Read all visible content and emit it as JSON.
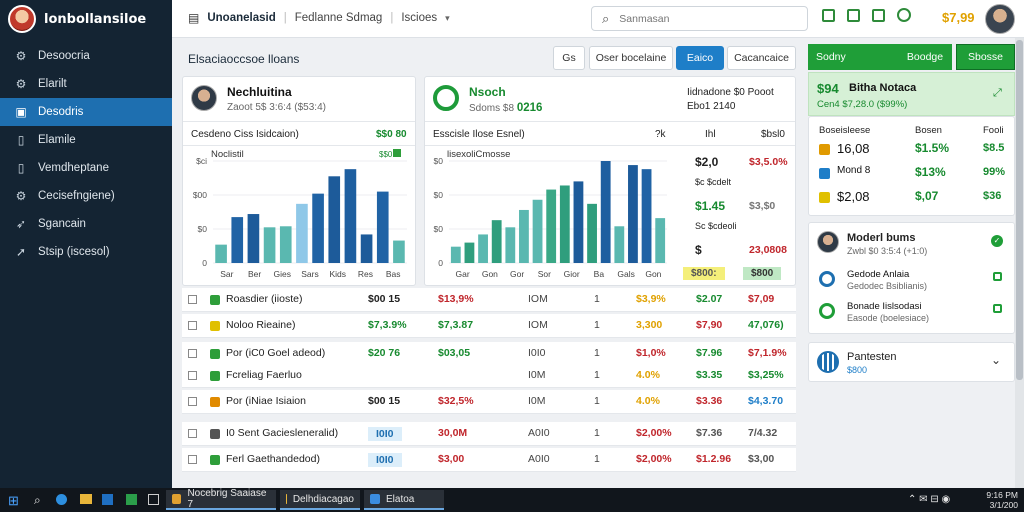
{
  "app": {
    "title": "lonbollansiloe"
  },
  "sidebar": {
    "items": [
      {
        "label": "Desoocria",
        "icon": "gear-icon"
      },
      {
        "label": "Elarilt",
        "icon": "gear-icon"
      },
      {
        "label": "Desodris",
        "icon": "inbox-icon",
        "active": true
      },
      {
        "label": "Elamile",
        "icon": "document-icon"
      },
      {
        "label": "Vemdheptane",
        "icon": "document-icon"
      },
      {
        "label": "Cecisefngiene)",
        "icon": "gear-icon"
      },
      {
        "label": "Sgancain",
        "icon": "rocket-icon"
      },
      {
        "label": "Stsip (iscesol)",
        "icon": "tag-icon"
      }
    ]
  },
  "topbar": {
    "title": "Unoanelasid",
    "crumb1": "Fedlanne Sdmag",
    "crumb2": "Iscioes",
    "search_placeholder": "Sanmasan",
    "price": "$7,99"
  },
  "main": {
    "title": "Elsaciaoccsoe lloans",
    "buttons": [
      "Gs",
      "Oser bocelaine",
      "Eaico",
      "Cacancaice"
    ]
  },
  "card1": {
    "name": "Nechluitina",
    "sub": "Zaoot 5$ 3:6:4 ($53:4)",
    "caption": "Cesdeno Ciss Isidcaion)",
    "value": "$$0 80",
    "chart_title": "Noclistil",
    "chart_tag": "$$0",
    "yticks": [
      "$ci",
      "$00",
      "$0",
      "0"
    ],
    "xticks": [
      "Sar",
      "Ber",
      "Gies",
      "Sars",
      "Kids",
      "Res",
      "Bas"
    ],
    "bars": [
      {
        "v": 18,
        "c": "#5ab8b0"
      },
      {
        "v": 45,
        "c": "#2063a5"
      },
      {
        "v": 48,
        "c": "#1d5b9a"
      },
      {
        "v": 35,
        "c": "#5ab8b0"
      },
      {
        "v": 36,
        "c": "#5ab8b0"
      },
      {
        "v": 58,
        "c": "#8fc8e8"
      },
      {
        "v": 68,
        "c": "#2063a5"
      },
      {
        "v": 85,
        "c": "#1d5b9a"
      },
      {
        "v": 92,
        "c": "#1e5fa0"
      },
      {
        "v": 28,
        "c": "#1d5b9a"
      },
      {
        "v": 70,
        "c": "#2063a5"
      },
      {
        "v": 22,
        "c": "#5ab8b0"
      }
    ]
  },
  "card2": {
    "name": "Nsoch",
    "sub_label": "Sdoms $8",
    "sub_value": "0216",
    "right1": "Iidnadone $0 Pooot",
    "right2": "Ebo1 2140",
    "caption": "Esscisle Ilose Esnel)",
    "col_a": "?k",
    "col_b": "Ihl",
    "col_c": "$bsl0",
    "chart_title": "lisexoliCmosse",
    "yticks": [
      "$0",
      "$0",
      "$0",
      "0"
    ],
    "xticks": [
      "Gar",
      "Gon",
      "Gor",
      "Sor",
      "Gior",
      "Ba",
      "Gals",
      "Gon"
    ],
    "bars": [
      {
        "v": 16,
        "c": "#5ab8b0"
      },
      {
        "v": 20,
        "c": "#2f9e7d"
      },
      {
        "v": 28,
        "c": "#5ab8b0"
      },
      {
        "v": 42,
        "c": "#2f9e7d"
      },
      {
        "v": 35,
        "c": "#5ab8b0"
      },
      {
        "v": 52,
        "c": "#5ab8b0"
      },
      {
        "v": 62,
        "c": "#5ab8b0"
      },
      {
        "v": 72,
        "c": "#3aa886"
      },
      {
        "v": 76,
        "c": "#2f9e7d"
      },
      {
        "v": 80,
        "c": "#1d5b9a"
      },
      {
        "v": 58,
        "c": "#2f9e7d"
      },
      {
        "v": 100,
        "c": "#1e5fa0"
      },
      {
        "v": 36,
        "c": "#5ab8b0"
      },
      {
        "v": 96,
        "c": "#1d5b9a"
      },
      {
        "v": 92,
        "c": "#2063a5"
      },
      {
        "v": 44,
        "c": "#5ab8b0"
      }
    ],
    "side": [
      {
        "a": "$2,0",
        "b": "$3,5.0%",
        "bc": "#c0262c"
      },
      {
        "a": "$c $cdelt",
        "b": "",
        "bc": "#333"
      },
      {
        "a": "$1.45",
        "b": "$3,$0",
        "bc": "#777",
        "ac": "#178a2f"
      },
      {
        "a": "Sc $cdeoli",
        "b": "",
        "bc": "#333"
      },
      {
        "a": "$",
        "b": "23,0808",
        "bc": "#c0262c"
      }
    ],
    "badge1": "$800:",
    "badge2": "$800"
  },
  "table": {
    "rows": [
      {
        "icon_color": "#2e9e3a",
        "label": "Roasdier (iioste)",
        "v1": "$00 15",
        "v2": "$13,9%",
        "v2c": "#c0262c",
        "v3": "IOM",
        "v4": "1",
        "v5": "$3,9%",
        "v5c": "#e0a100",
        "v6": "$2.07",
        "v6c": "#178a2f",
        "v7": "$7,09",
        "v7c": "#c0262c"
      },
      {
        "icon_color": "#e0c000",
        "label": "Noloo Rieaine)",
        "v1": "$7,3.9%",
        "v1c": "#178a2f",
        "v2": "$7,3.87",
        "v2c": "#178a2f",
        "v3": "IOM",
        "v4": "1",
        "v5": "3,300",
        "v5c": "#e0a100",
        "v6": "$7,90",
        "v6c": "#c0262c",
        "v7": "47,076)",
        "v7c": "#178a2f"
      },
      {
        "icon_color": "#2e9e3a",
        "label": "Por (iC0 Goel adeod)",
        "v1": "$20 76",
        "v1c": "#178a2f",
        "v2": "$03,05",
        "v2c": "#178a2f",
        "v3": "I0I0",
        "v4": "1",
        "v5": "$1,0%",
        "v5c": "#c0262c",
        "v6": "$7.96",
        "v6c": "#178a2f",
        "v7": "$7,1.9%",
        "v7c": "#c0262c"
      },
      {
        "icon_color": "#2e9e3a",
        "label": "Fcreliag Faerluo",
        "v1": "",
        "v2": "",
        "v3": "I0M",
        "v4": "1",
        "v5": "4.0%",
        "v5c": "#e0a100",
        "v6": "$3.35",
        "v6c": "#178a2f",
        "v7": "$3,25%",
        "v7c": "#178a2f"
      },
      {
        "icon_color": "#e08a00",
        "label": "Por (iNiae Isiaion",
        "v1": "$00 15",
        "v2": "$32,5%",
        "v2c": "#c0262c",
        "v3": "I0M",
        "v4": "1",
        "v5": "4.0%",
        "v5c": "#e0a100",
        "v6": "$3.36",
        "v6c": "#c0262c",
        "v7": "$4,3.70",
        "v7c": "#1e7ec8"
      },
      {
        "icon_color": "#555",
        "label": "I0 Sent Gaciesleneralid)",
        "v1": "I0I0",
        "v1pill": true,
        "v2": "30,0M",
        "v2c": "#c0262c",
        "v3": "A0I0",
        "v4": "1",
        "v5": "$2,00%",
        "v5c": "#c0262c",
        "v6": "$7.36",
        "v6c": "#555",
        "v7": "7/4.32",
        "v7c": "#555"
      },
      {
        "icon_color": "#2e9e3a",
        "label": "Ferl Gaethandedod)",
        "v1": "I0I0",
        "v1pill": true,
        "v2": "$3,00",
        "v2c": "#c0262c",
        "v3": "A0I0",
        "v4": "1",
        "v5": "$2,00%",
        "v5c": "#c0262c",
        "v6": "$1.2.96",
        "v6c": "#c0262c",
        "v7": "$3,00",
        "v7c": "#555"
      }
    ]
  },
  "right": {
    "tabs": [
      "Sodny",
      "Boodge",
      "Sbosse"
    ],
    "summary_price": "$94",
    "summary_name": "Bitha Notaca",
    "summary_sub": "Cen4 $7,28.0 ($99%)",
    "stats_head": [
      "Boseisleese",
      "Bosen",
      "Fooli"
    ],
    "stats": [
      {
        "icon_color": "#e09a00",
        "a": "16,08",
        "b": "$1.5%",
        "c": "$8.5"
      },
      {
        "icon_color": "#1e7ec8",
        "a": "Mond 8",
        "b": "$13%",
        "c": "99%"
      },
      {
        "icon_color": "#e0c000",
        "a": "$2,08",
        "b": "$,07",
        "c": "$36"
      }
    ],
    "contacts_head_name": "Moderl bums",
    "contacts_head_sub": "Zwbl $0 3:5:4 (+1:0)",
    "contacts": [
      {
        "name": "Gedode Anlaia",
        "sub": "Gedodec Bsiblianis)"
      },
      {
        "name": "Bonade Iislsodasi",
        "sub": "Easode (boelesiace)"
      }
    ],
    "accordion_title": "Pantesten",
    "accordion_sub": "$800"
  },
  "taskbar": {
    "apps": [
      "Nocebrig Saaiase 7",
      "Delhdiacagao",
      "Elatoa"
    ],
    "time": "9:16 PM",
    "date": "3/1/200"
  }
}
